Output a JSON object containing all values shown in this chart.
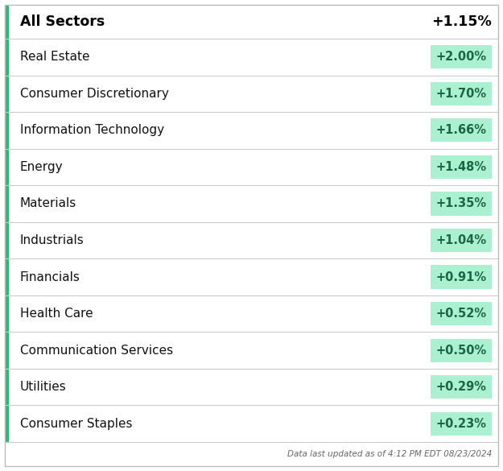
{
  "header_label": "All Sectors",
  "header_value": "+1.15%",
  "rows": [
    {
      "sector": "Real Estate",
      "value": "+2.00%"
    },
    {
      "sector": "Consumer Discretionary",
      "value": "+1.70%"
    },
    {
      "sector": "Information Technology",
      "value": "+1.66%"
    },
    {
      "sector": "Energy",
      "value": "+1.48%"
    },
    {
      "sector": "Materials",
      "value": "+1.35%"
    },
    {
      "sector": "Industrials",
      "value": "+1.04%"
    },
    {
      "sector": "Financials",
      "value": "+0.91%"
    },
    {
      "sector": "Health Care",
      "value": "+0.52%"
    },
    {
      "sector": "Communication Services",
      "value": "+0.50%"
    },
    {
      "sector": "Utilities",
      "value": "+0.29%"
    },
    {
      "sector": "Consumer Staples",
      "value": "+0.23%"
    }
  ],
  "footer_text": "Data last updated as of 4:12 PM EDT 08/23/2024",
  "bg_color": "#ffffff",
  "border_color": "#cccccc",
  "header_bg": "#ffffff",
  "row_bg": "#ffffff",
  "badge_bg": "#aaf0d1",
  "badge_text_color": "#1a6644",
  "left_bar_color": "#2db87a",
  "header_text_color": "#000000",
  "row_text_color": "#111111",
  "footer_text_color": "#666666",
  "outer_border_color": "#bbbbbb",
  "fig_width": 6.25,
  "fig_height": 5.85,
  "dpi": 100
}
